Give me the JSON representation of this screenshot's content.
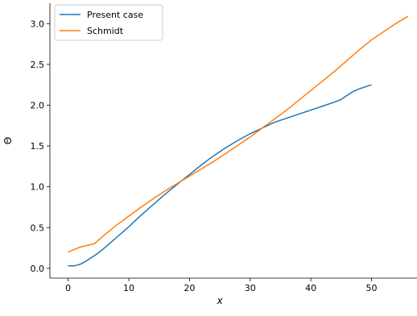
{
  "chart_data": {
    "type": "line",
    "title": "",
    "xlabel": "x",
    "ylabel": "Θ",
    "xlim": [
      -3,
      57.5
    ],
    "ylim": [
      -0.12,
      3.25
    ],
    "xticks": [
      0,
      10,
      20,
      30,
      40,
      50
    ],
    "xtick_labels": [
      "0",
      "10",
      "20",
      "30",
      "40",
      "50"
    ],
    "yticks": [
      0.0,
      0.5,
      1.0,
      1.5,
      2.0,
      2.5,
      3.0
    ],
    "ytick_labels": [
      "0.0",
      "0.5",
      "1.0",
      "1.5",
      "2.0",
      "2.5",
      "3.0"
    ],
    "grid": false,
    "legend_position": "top-left",
    "series": [
      {
        "name": "Present case",
        "color": "#1f77b4",
        "x": [
          0,
          1,
          2,
          3,
          4,
          5,
          6,
          8,
          10,
          12,
          14,
          16,
          18,
          20,
          22,
          24,
          26,
          28,
          30,
          32,
          34,
          36,
          38,
          40,
          42,
          44,
          45,
          46,
          47,
          48,
          50
        ],
        "y": [
          0.03,
          0.03,
          0.05,
          0.09,
          0.14,
          0.19,
          0.25,
          0.38,
          0.51,
          0.65,
          0.78,
          0.91,
          1.03,
          1.15,
          1.27,
          1.38,
          1.48,
          1.57,
          1.65,
          1.72,
          1.79,
          1.84,
          1.89,
          1.94,
          1.99,
          2.04,
          2.07,
          2.12,
          2.17,
          2.2,
          2.25
        ]
      },
      {
        "name": "Schmidt",
        "color": "#ff7f0e",
        "x": [
          0,
          2,
          4.3,
          6,
          8,
          10,
          12,
          14,
          16,
          18,
          20,
          22,
          24,
          26,
          28,
          30,
          32,
          34,
          36,
          38,
          40,
          42,
          44,
          46,
          48,
          50,
          52,
          54,
          56
        ],
        "y": [
          0.2,
          0.26,
          0.3,
          0.41,
          0.53,
          0.64,
          0.75,
          0.85,
          0.95,
          1.04,
          1.13,
          1.22,
          1.31,
          1.41,
          1.51,
          1.61,
          1.72,
          1.83,
          1.94,
          2.06,
          2.18,
          2.3,
          2.42,
          2.55,
          2.68,
          2.8,
          2.9,
          3.0,
          3.09
        ]
      }
    ]
  }
}
